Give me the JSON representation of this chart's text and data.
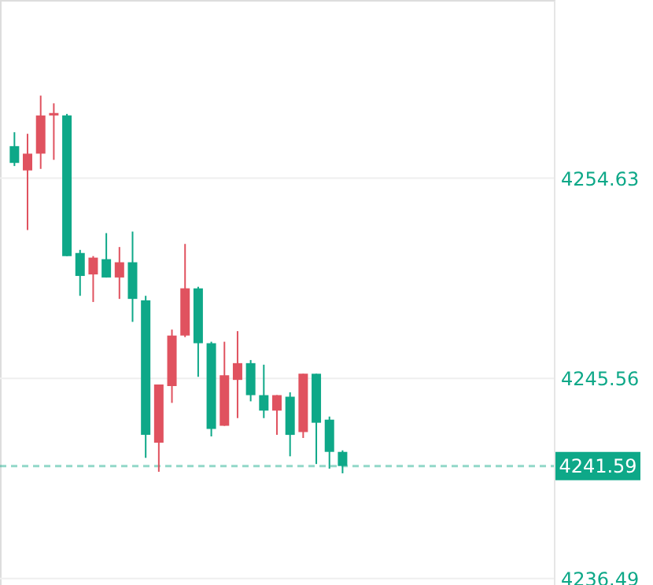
{
  "chart_data": {
    "type": "candlestick",
    "categories": [
      null,
      null,
      null,
      null,
      null,
      null,
      null,
      null,
      null,
      null,
      null,
      null,
      null,
      null,
      null,
      null,
      null,
      null,
      null,
      null,
      null,
      null,
      null,
      null,
      null,
      null,
      null,
      null,
      null,
      null,
      null,
      null,
      null,
      null,
      null,
      null,
      null,
      null,
      null,
      null,
      null
    ],
    "ohlc": [
      [
        4256.08,
        4256.71,
        4255.18,
        4255.32
      ],
      [
        4254.98,
        4256.64,
        4252.28,
        4255.74
      ],
      [
        4255.74,
        4258.37,
        4255.05,
        4257.47
      ],
      [
        4257.47,
        4258.02,
        4255.46,
        4257.58
      ],
      [
        4257.47,
        4257.54,
        4251.1,
        4251.1
      ],
      [
        4251.24,
        4251.38,
        4249.3,
        4250.2
      ],
      [
        4250.27,
        4251.1,
        4249.02,
        4251.03
      ],
      [
        4250.96,
        4252.14,
        4250.13,
        4250.13
      ],
      [
        4250.13,
        4251.51,
        4249.16,
        4250.82
      ],
      [
        4250.82,
        4252.21,
        4248.12,
        4249.16
      ],
      [
        4249.09,
        4249.3,
        4241.96,
        4243.0
      ],
      [
        4242.65,
        4245.28,
        4241.33,
        4245.28
      ],
      [
        4245.21,
        4247.77,
        4244.45,
        4247.5
      ],
      [
        4247.5,
        4251.65,
        4247.43,
        4249.64
      ],
      [
        4249.64,
        4249.71,
        4245.63,
        4247.15
      ],
      [
        4247.15,
        4247.22,
        4242.93,
        4243.27
      ],
      [
        4243.41,
        4247.22,
        4243.41,
        4245.7
      ],
      [
        4245.49,
        4247.7,
        4243.76,
        4246.25
      ],
      [
        4246.25,
        4246.39,
        4244.52,
        4244.8
      ],
      [
        4244.8,
        4246.18,
        4243.76,
        4244.1
      ],
      [
        4244.1,
        4244.8,
        4243.0,
        4244.8
      ],
      [
        4244.73,
        4244.93,
        4242.03,
        4243.0
      ],
      [
        4243.13,
        4245.77,
        4242.86,
        4245.77
      ],
      [
        4245.77,
        4245.77,
        4241.68,
        4243.55
      ],
      [
        4243.69,
        4243.83,
        4241.47,
        4242.23
      ],
      [
        4242.23,
        4242.3,
        4241.26,
        4241.59
      ],
      null,
      null,
      null,
      null,
      null,
      null,
      null,
      null,
      null,
      null,
      null,
      null,
      null,
      null,
      null
    ],
    "colors": [
      "#0ea888",
      "#e0525f",
      "#e0525f",
      "#e0525f",
      "#0ea888",
      "#0ea888",
      "#e0525f",
      "#0ea888",
      "#e0525f",
      "#0ea888",
      "#0ea888",
      "#e0525f",
      "#e0525f",
      "#e0525f",
      "#0ea888",
      "#0ea888",
      "#e0525f",
      "#e0525f",
      "#0ea888",
      "#0ea888",
      "#e0525f",
      "#0ea888",
      "#e0525f",
      "#0ea888",
      "#0ea888",
      "#0ea888",
      null,
      null,
      null,
      null,
      null,
      null,
      null,
      null,
      null,
      null,
      null,
      null,
      null,
      null,
      null
    ],
    "ylim": [
      4236.2,
      4262.7
    ],
    "yticks": [
      4254.63,
      4245.56,
      4236.49
    ],
    "grid": "y",
    "tick_labels": "y",
    "ref_lines": [
      {
        "axis": "y",
        "value": 4241.59,
        "label": "4241.59",
        "color": "#0ea888",
        "line_style": "dashed"
      }
    ]
  }
}
